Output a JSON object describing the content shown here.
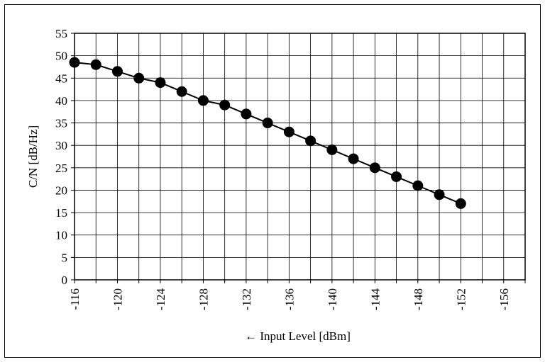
{
  "chart_data": {
    "type": "line",
    "title": "",
    "xlabel": "← Input Level [dBm]",
    "ylabel": "C/N [dB/Hz]",
    "xlim": [
      -116,
      -158
    ],
    "ylim": [
      0,
      55
    ],
    "x_ticks": [
      -116,
      -120,
      -124,
      -128,
      -132,
      -136,
      -140,
      -144,
      -148,
      -152,
      -156
    ],
    "x_tick_labels": [
      "-116",
      "-120",
      "-124",
      "-128",
      "-132",
      "-136",
      "-140",
      "-144",
      "-148",
      "-152",
      "-156"
    ],
    "y_ticks": [
      0,
      5,
      10,
      15,
      20,
      25,
      30,
      35,
      40,
      45,
      50,
      55
    ],
    "y_tick_labels": [
      "0",
      "5",
      "10",
      "15",
      "20",
      "25",
      "30",
      "35",
      "40",
      "45",
      "50",
      "55"
    ],
    "grid": true,
    "legend": "none",
    "series": [
      {
        "x": [
          -116,
          -118,
          -120,
          -122,
          -124,
          -126,
          -128,
          -130,
          -132,
          -134,
          -136,
          -138,
          -140,
          -142,
          -144,
          -146,
          -148,
          -150,
          -152
        ],
        "y": [
          48.5,
          48,
          46.5,
          45,
          44,
          42,
          40,
          39,
          37,
          35,
          33,
          31,
          29,
          27,
          25,
          23,
          21,
          19,
          17
        ],
        "color": "#000000",
        "marker": "circle"
      }
    ]
  }
}
